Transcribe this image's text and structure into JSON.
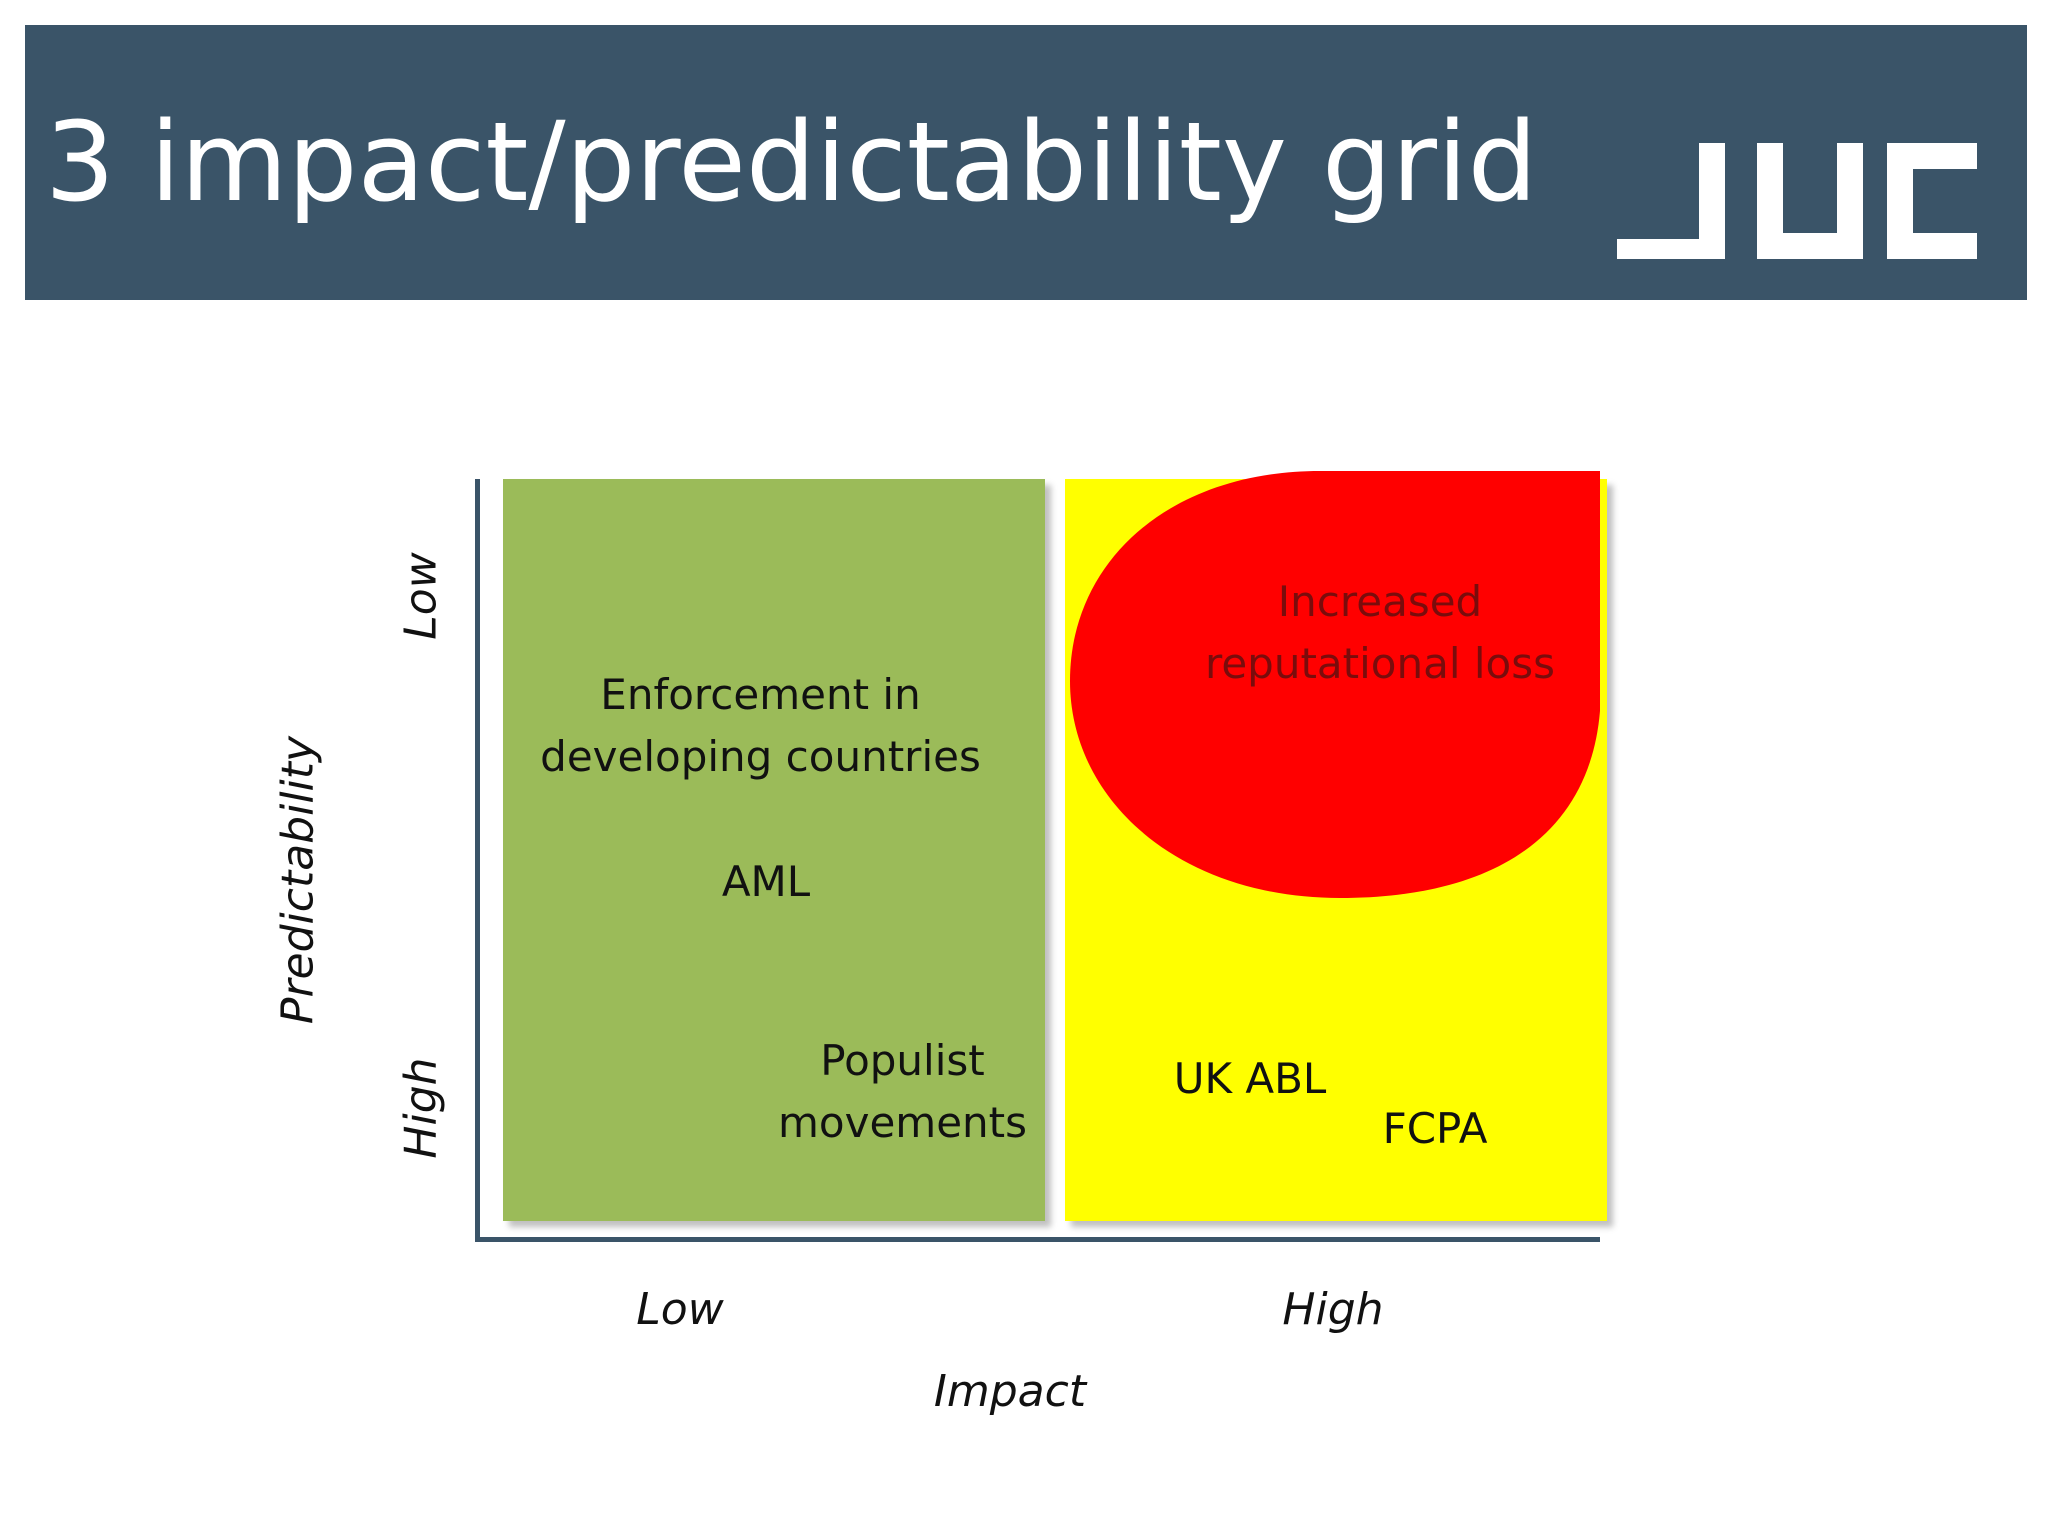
{
  "header": {
    "title": "3 impact/predictability grid",
    "logo_text": "JUC",
    "background_color": "#3a5468"
  },
  "diagram": {
    "x_axis": {
      "label": "Impact",
      "low": "Low",
      "high": "High"
    },
    "y_axis": {
      "label": "Predictability",
      "low": "Low",
      "high": "High"
    },
    "quadrants": [
      {
        "color": "#9bbb59",
        "items": [
          "Enforcement in developing countries",
          "AML",
          "Populist movements"
        ]
      },
      {
        "color": "#ffff00",
        "items": [
          "UK ABL",
          "FCPA"
        ]
      }
    ],
    "highlight": {
      "color": "#ff0000",
      "text": "Increased reputational loss"
    }
  },
  "labels": {
    "enforcement_line1": "Enforcement in",
    "enforcement_line2": "developing countries",
    "aml": "AML",
    "populist_line1": "Populist",
    "populist_line2": "movements",
    "uk_abl": "UK ABL",
    "fcpa": "FCPA",
    "increased_line1": "Increased",
    "increased_line2": "reputational loss"
  }
}
